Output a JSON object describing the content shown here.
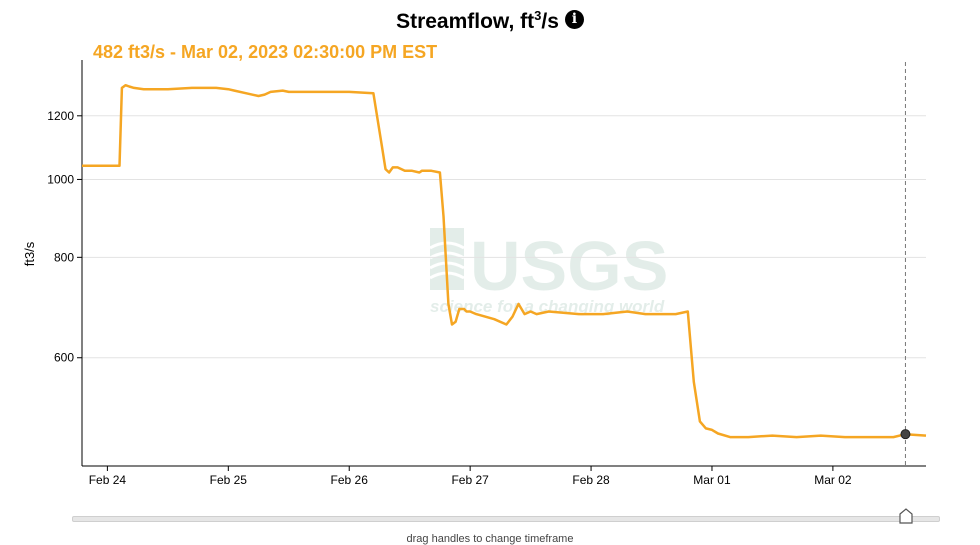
{
  "header": {
    "title": "Streamflow, ft",
    "title_sup": "3",
    "title_suffix": "/s",
    "info_icon": "info-icon"
  },
  "readout": "482 ft3/s - Mar 02, 2023 02:30:00 PM EST",
  "watermark": {
    "logo_text": "USGS",
    "tagline": "science for a changing world"
  },
  "slider": {
    "hint": "drag handles to change timeframe"
  },
  "colors": {
    "line": "#f5a623",
    "grid": "#e3e3e3",
    "axis": "#000000",
    "marker": "#444444"
  },
  "chart_data": {
    "type": "line",
    "title": "Streamflow, ft3/s",
    "xlabel": "",
    "ylabel": "ft3/s",
    "y_scale": "log",
    "ylim": [
      440,
      1400
    ],
    "y_ticks": [
      600,
      800,
      1000,
      1200
    ],
    "x_ticks": [
      "Feb 24",
      "Feb 25",
      "Feb 26",
      "Feb 27",
      "Feb 28",
      "Mar 01",
      "Mar 02"
    ],
    "x_unit": "days since 2023-02-24 00:00 EST",
    "xlim": [
      -0.21,
      6.77
    ],
    "grid": true,
    "series": [
      {
        "name": "Streamflow",
        "x": [
          -0.21,
          0.1,
          0.12,
          0.15,
          0.18,
          0.22,
          0.3,
          0.5,
          0.7,
          0.78,
          0.9,
          1.0,
          1.05,
          1.15,
          1.25,
          1.3,
          1.35,
          1.45,
          1.5,
          1.6,
          2.0,
          2.2,
          2.27,
          2.3,
          2.33,
          2.36,
          2.4,
          2.46,
          2.52,
          2.58,
          2.6,
          2.68,
          2.75,
          2.78,
          2.82,
          2.85,
          2.88,
          2.91,
          2.95,
          2.97,
          3.0,
          3.05,
          3.2,
          3.3,
          3.35,
          3.4,
          3.45,
          3.5,
          3.55,
          3.65,
          3.9,
          4.1,
          4.3,
          4.45,
          4.7,
          4.8,
          4.85,
          4.9,
          4.95,
          5.0,
          5.05,
          5.15,
          5.3,
          5.5,
          5.7,
          5.9,
          6.1,
          6.3,
          6.5,
          6.6,
          6.77
        ],
        "values": [
          1040,
          1040,
          1300,
          1310,
          1305,
          1300,
          1295,
          1295,
          1300,
          1300,
          1300,
          1295,
          1290,
          1280,
          1270,
          1275,
          1285,
          1290,
          1285,
          1285,
          1285,
          1280,
          1100,
          1030,
          1020,
          1035,
          1035,
          1025,
          1025,
          1020,
          1025,
          1025,
          1020,
          900,
          700,
          660,
          665,
          690,
          690,
          685,
          685,
          680,
          670,
          660,
          675,
          700,
          680,
          685,
          680,
          685,
          680,
          680,
          685,
          680,
          680,
          685,
          560,
          500,
          490,
          488,
          483,
          478,
          478,
          480,
          478,
          480,
          478,
          478,
          478,
          482,
          480
        ]
      }
    ],
    "current_point": {
      "x": 6.6,
      "y": 482,
      "label": "Mar 02, 2023 02:30:00 PM EST"
    }
  }
}
